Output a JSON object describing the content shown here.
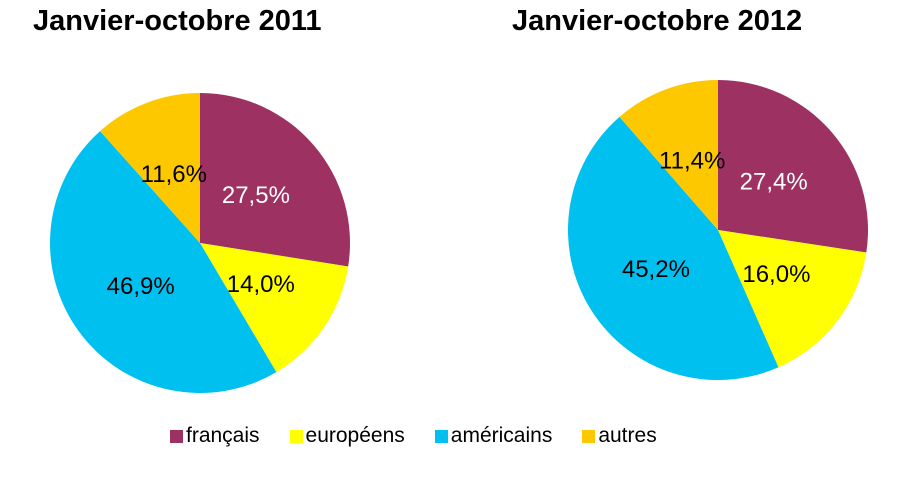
{
  "chart_data": [
    {
      "type": "pie",
      "title": "Janvier-octobre 2011",
      "labels": [
        "français",
        "européens",
        "américains",
        "autres"
      ],
      "values": [
        27.5,
        14.0,
        46.9,
        11.6
      ],
      "value_labels": [
        "27,5%",
        "14,0%",
        "46,9%",
        "11,6%"
      ],
      "colors": [
        "#9C3162",
        "#FFFF00",
        "#00C0F0",
        "#FDC800"
      ],
      "label_colors": [
        "#FFFFFF",
        "#000000",
        "#000000",
        "#000000"
      ],
      "start_angle_deg": 0,
      "direction": "clockwise",
      "label_radius_ratio": 0.49,
      "grid": false,
      "legend_position": "bottom-shared"
    },
    {
      "type": "pie",
      "title": "Janvier-octobre 2012",
      "labels": [
        "français",
        "européens",
        "américains",
        "autres"
      ],
      "values": [
        27.4,
        16.0,
        45.2,
        11.4
      ],
      "value_labels": [
        "27,4%",
        "16,0%",
        "45,2%",
        "11,4%"
      ],
      "colors": [
        "#9C3162",
        "#FFFF00",
        "#00C0F0",
        "#FDC800"
      ],
      "label_colors": [
        "#FFFFFF",
        "#000000",
        "#000000",
        "#000000"
      ],
      "start_angle_deg": 0,
      "direction": "clockwise",
      "label_radius_ratio": 0.49,
      "grid": false,
      "legend_position": "bottom-shared"
    }
  ],
  "legend": {
    "position": "bottom",
    "items": [
      {
        "label": "français",
        "color": "#9C3162"
      },
      {
        "label": "européens",
        "color": "#FFFF00"
      },
      {
        "label": "américains",
        "color": "#00C0F0"
      },
      {
        "label": "autres",
        "color": "#FDC800"
      }
    ]
  }
}
